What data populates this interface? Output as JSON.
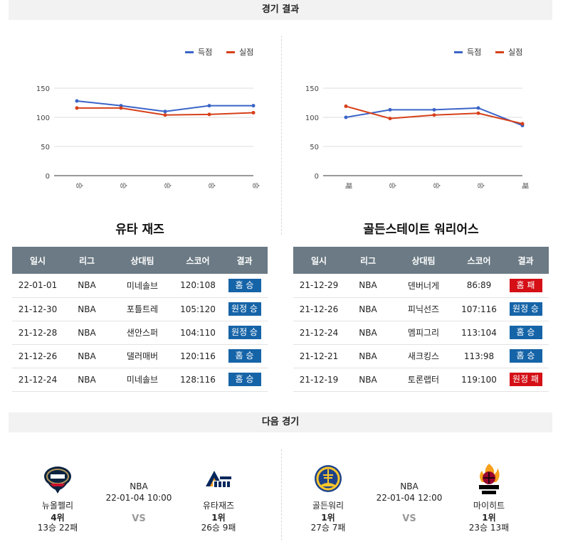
{
  "sections": {
    "results": "경기 결과",
    "next": "다음 경기"
  },
  "legend": {
    "scored": "득점",
    "conceded": "실점"
  },
  "colors": {
    "scored": "#3a64c8",
    "conceded": "#d6401a",
    "win": "#1664a8",
    "loss": "#d40f16",
    "header": "#6b7a84"
  },
  "chart_data": [
    {
      "type": "line",
      "categories": [
        "승",
        "승",
        "승",
        "승",
        "승"
      ],
      "series": [
        {
          "name": "득점",
          "values": [
            128,
            120,
            110,
            120,
            120
          ]
        },
        {
          "name": "실점",
          "values": [
            116,
            116,
            104,
            105,
            108
          ]
        }
      ],
      "ylim": [
        0,
        150
      ],
      "yticks": [
        0,
        50,
        100,
        150
      ],
      "grid": true,
      "legend": "top-right"
    },
    {
      "type": "line",
      "categories": [
        "패",
        "승",
        "승",
        "승",
        "패"
      ],
      "series": [
        {
          "name": "득점",
          "values": [
            100,
            113,
            113,
            116,
            86
          ]
        },
        {
          "name": "실점",
          "values": [
            119,
            98,
            104,
            107,
            89
          ]
        }
      ],
      "ylim": [
        0,
        150
      ],
      "yticks": [
        0,
        50,
        100,
        150
      ],
      "grid": true,
      "legend": "top-right"
    }
  ],
  "table_headers": [
    "일시",
    "리그",
    "상대팀",
    "스코어",
    "결과"
  ],
  "teams": [
    {
      "title": "유타 재즈",
      "games": [
        {
          "date": "22-01-01",
          "league": "NBA",
          "opponent": "미네솔브",
          "score": "120:108",
          "result": "홈 승",
          "type": "win"
        },
        {
          "date": "21-12-30",
          "league": "NBA",
          "opponent": "포틀트레",
          "score": "105:120",
          "result": "원정 승",
          "type": "win"
        },
        {
          "date": "21-12-28",
          "league": "NBA",
          "opponent": "샌안스퍼",
          "score": "104:110",
          "result": "원정 승",
          "type": "win"
        },
        {
          "date": "21-12-26",
          "league": "NBA",
          "opponent": "댈러매버",
          "score": "120:116",
          "result": "홈 승",
          "type": "win"
        },
        {
          "date": "21-12-24",
          "league": "NBA",
          "opponent": "미네솔브",
          "score": "128:116",
          "result": "홈 승",
          "type": "win"
        }
      ]
    },
    {
      "title": "골든스테이트 워리어스",
      "games": [
        {
          "date": "21-12-29",
          "league": "NBA",
          "opponent": "덴버너게",
          "score": "86:89",
          "result": "홈 패",
          "type": "loss"
        },
        {
          "date": "21-12-26",
          "league": "NBA",
          "opponent": "피닉선즈",
          "score": "107:116",
          "result": "원정 승",
          "type": "win"
        },
        {
          "date": "21-12-24",
          "league": "NBA",
          "opponent": "멤피그리",
          "score": "113:104",
          "result": "홈 승",
          "type": "win"
        },
        {
          "date": "21-12-21",
          "league": "NBA",
          "opponent": "새크킹스",
          "score": "113:98",
          "result": "홈 승",
          "type": "win"
        },
        {
          "date": "21-12-19",
          "league": "NBA",
          "opponent": "토론랩터",
          "score": "119:100",
          "result": "원정 패",
          "type": "loss"
        }
      ]
    }
  ],
  "next_games": [
    {
      "league": "NBA",
      "datetime": "22-01-04 10:00",
      "vs": "VS",
      "home": {
        "name": "뉴올펠리",
        "rank": "4위",
        "record": "13승 22패",
        "logo": "pelicans-logo"
      },
      "away": {
        "name": "유타재즈",
        "rank": "1위",
        "record": "26승 9패",
        "logo": "jazz-logo"
      }
    },
    {
      "league": "NBA",
      "datetime": "22-01-04 12:00",
      "vs": "VS",
      "home": {
        "name": "골든워리",
        "rank": "1위",
        "record": "27승 7패",
        "logo": "warriors-logo"
      },
      "away": {
        "name": "마이히트",
        "rank": "1위",
        "record": "23승 13패",
        "logo": "heat-logo"
      }
    }
  ]
}
